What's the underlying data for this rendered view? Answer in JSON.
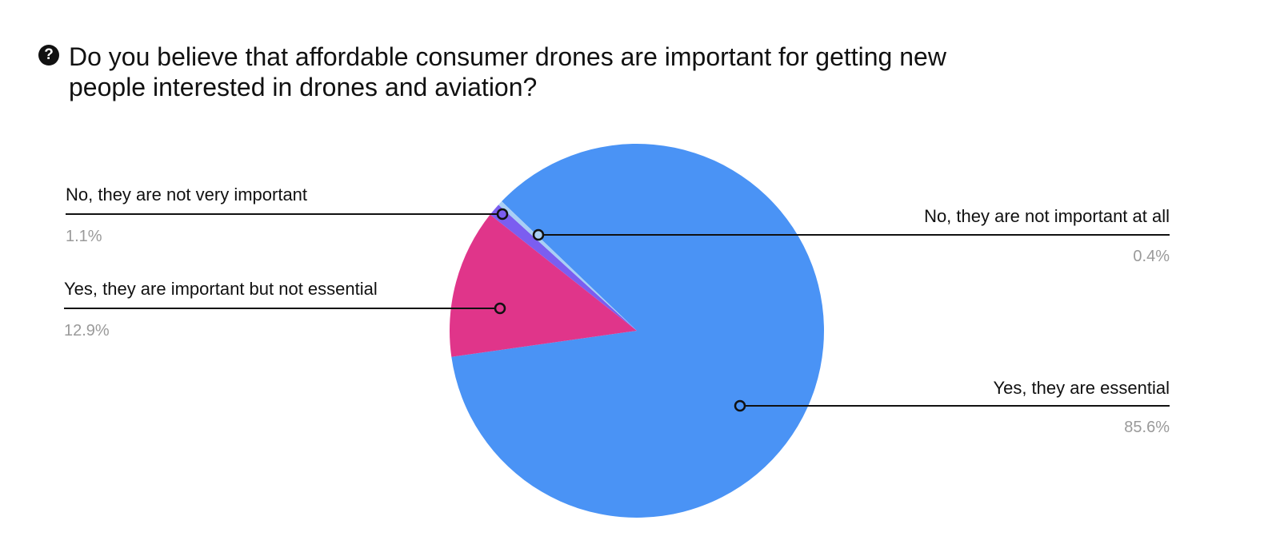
{
  "chart_data": {
    "type": "pie",
    "title": "Do you believe that affordable consumer drones are important for getting new people interested in drones and aviation?",
    "title_icon": "question-circle-icon",
    "slices": [
      {
        "label": "Yes, they are essential",
        "value": 85.6,
        "display": "85.6%",
        "color": "#4a93f5"
      },
      {
        "label": "Yes, they are important but not essential",
        "value": 12.9,
        "display": "12.9%",
        "color": "#e0358a"
      },
      {
        "label": "No, they are not very important",
        "value": 1.1,
        "display": "1.1%",
        "color": "#7b5ef0"
      },
      {
        "label": "No, they are not important at all",
        "value": 0.4,
        "display": "0.4%",
        "color": "#a9cff5"
      }
    ]
  }
}
